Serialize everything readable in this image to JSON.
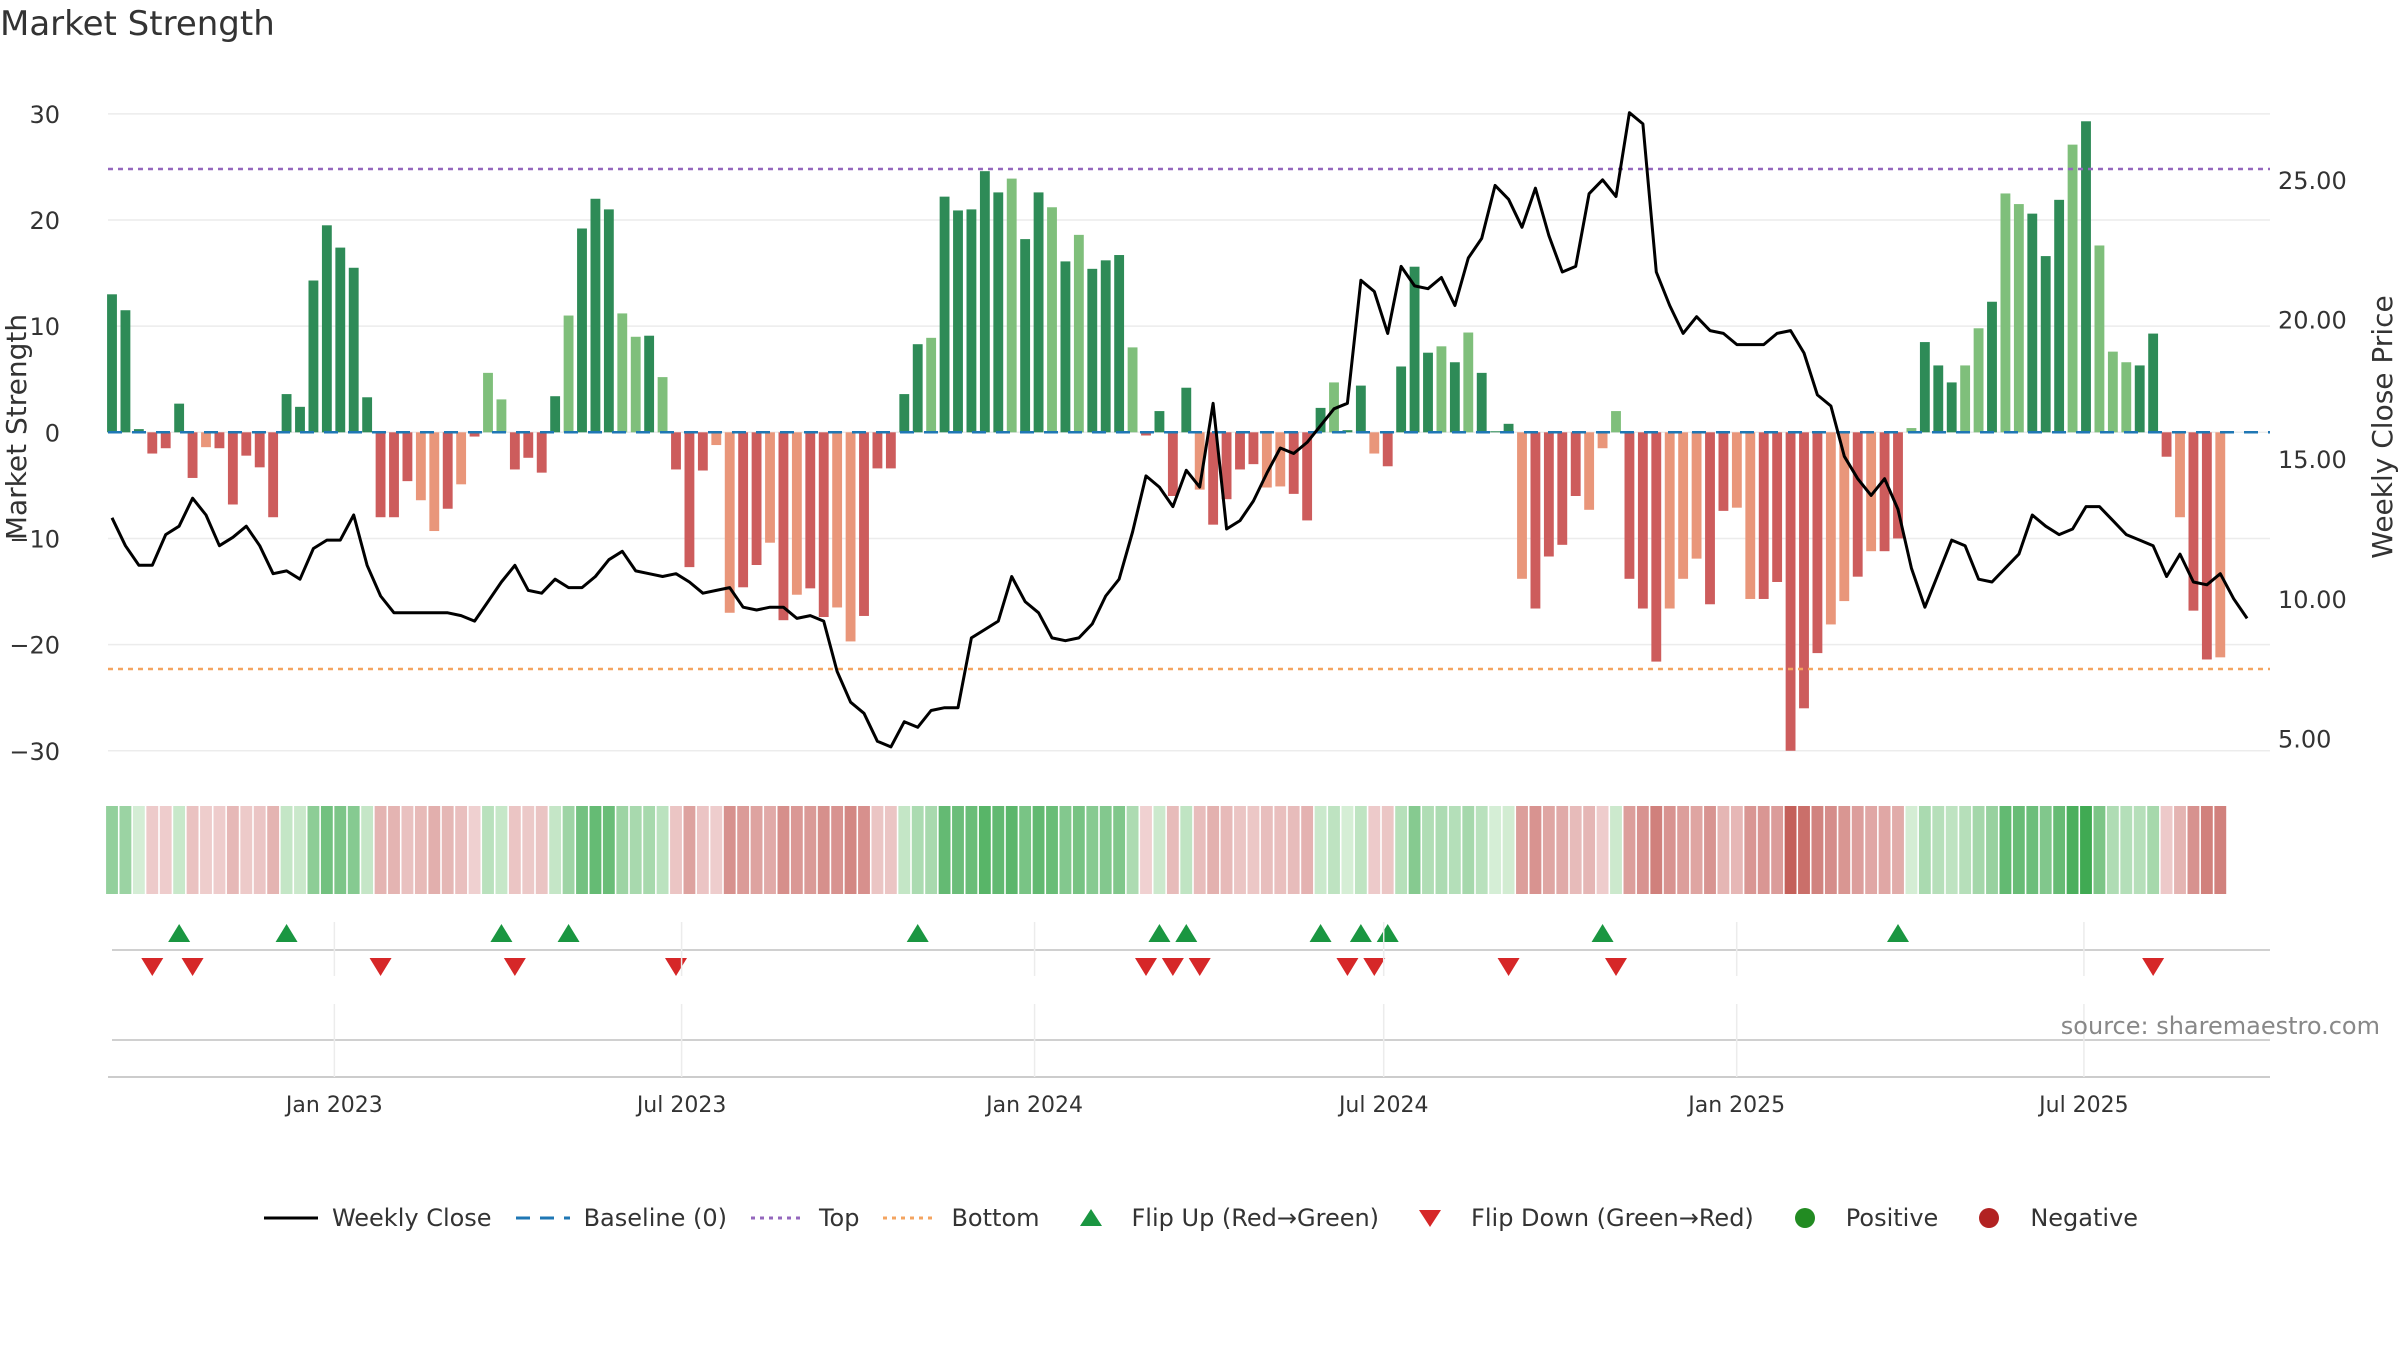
{
  "page": {
    "title": "Market Strength",
    "source": "source: sharemaestro.com"
  },
  "legend": [
    {
      "id": "close",
      "label": "Weekly Close",
      "symbol": "line",
      "color": "#000000"
    },
    {
      "id": "baseline",
      "label": "Baseline (0)",
      "symbol": "dash",
      "color": "#1f77b4"
    },
    {
      "id": "top",
      "label": "Top",
      "symbol": "dot",
      "color": "#9467bd"
    },
    {
      "id": "bottom",
      "label": "Bottom",
      "symbol": "dot",
      "color": "#f4a460"
    },
    {
      "id": "flipup",
      "label": "Flip Up (Red→Green)",
      "symbol": "tri-up",
      "color": "#1a9641"
    },
    {
      "id": "flipdown",
      "label": "Flip Down (Green→Red)",
      "symbol": "tri-down",
      "color": "#d62728"
    },
    {
      "id": "positive",
      "label": "Positive",
      "symbol": "circle",
      "color": "#228b22"
    },
    {
      "id": "negative",
      "label": "Negative",
      "symbol": "circle",
      "color": "#b22222"
    }
  ],
  "chart_data": {
    "type": "bar",
    "title": "Market Strength",
    "ylabel": "Market Strength",
    "y2label": "Weekly Close Price",
    "ylim": [
      -32,
      33
    ],
    "y2lim": [
      3.8,
      28.5
    ],
    "yticks": [
      30,
      20,
      10,
      0,
      -10,
      -20,
      -30
    ],
    "ytick_labels": [
      "30",
      "20",
      "10",
      "0",
      "−10",
      "−20",
      "−30"
    ],
    "y2ticks": [
      25,
      20,
      15,
      10,
      5
    ],
    "y2tick_labels": [
      "25.00",
      "20.00",
      "15.00",
      "10.00",
      "5.00"
    ],
    "x_start": "2022-09-05",
    "x_end": "2025-10-06",
    "xticks": [
      "2023-01-01",
      "2023-07-01",
      "2024-01-01",
      "2024-07-01",
      "2025-01-01",
      "2025-07-01"
    ],
    "xtick_labels": [
      "Jan 2023",
      "Jul 2023",
      "Jan 2024",
      "Jul 2024",
      "Jan 2025",
      "Jul 2025"
    ],
    "top_line": 24.8,
    "bottom_line": -22.3,
    "baseline": 0,
    "colors": {
      "pos_strong": "#2e8b57",
      "pos_light": "#7fbf7b",
      "neg_strong": "#cd5c5c",
      "neg_light": "#e9967a",
      "close": "#000000",
      "baseline": "#1f77b4",
      "top": "#9467bd",
      "bottom": "#f4a460",
      "flip_up": "#1a9641",
      "flip_down": "#d62728"
    },
    "series": [
      {
        "name": "Market Strength",
        "values": [
          13,
          11.5,
          0.3,
          -2,
          -1.5,
          2.7,
          -4.3,
          -1.4,
          -1.5,
          -6.8,
          -2.2,
          -3.3,
          -8,
          3.6,
          2.4,
          14.3,
          19.5,
          17.4,
          15.5,
          3.3,
          -8,
          -8,
          -4.6,
          -6.4,
          -9.3,
          -7.2,
          -4.9,
          -0.4,
          5.6,
          3.1,
          -3.5,
          -2.4,
          -3.8,
          3.4,
          11,
          19.2,
          22,
          21,
          11.2,
          9,
          9.1,
          5.2,
          -3.5,
          -12.7,
          -3.6,
          -1.2,
          -17,
          -14.6,
          -12.5,
          -10.4,
          -17.7,
          -15.3,
          -14.7,
          -17.4,
          -16.5,
          -19.7,
          -17.3,
          -3.4,
          -3.4,
          3.6,
          8.3,
          8.9,
          22.2,
          20.9,
          21,
          24.6,
          22.6,
          23.9,
          18.2,
          22.6,
          21.2,
          16.1,
          18.6,
          15.4,
          16.2,
          16.7,
          8,
          -0.3,
          2,
          -6,
          4.2,
          -5.4,
          -8.7,
          -6.3,
          -3.5,
          -3,
          -5.2,
          -5.1,
          -5.8,
          -8.3,
          2.3,
          4.7,
          0.2,
          4.4,
          -2,
          -3.2,
          6.2,
          15.6,
          7.5,
          8.1,
          6.6,
          9.4,
          5.6,
          0.1,
          0.8,
          -13.8,
          -16.6,
          -11.7,
          -10.6,
          -6,
          -7.3,
          -1.5,
          2,
          -13.8,
          -16.6,
          -21.6,
          -16.6,
          -13.8,
          -11.9,
          -16.2,
          -7.4,
          -7.1,
          -15.7,
          -15.7,
          -14.1,
          -30,
          -26,
          -20.8,
          -18.1,
          -15.9,
          -13.6,
          -11.2,
          -11.2,
          -10,
          0.4,
          8.5,
          6.3,
          4.7,
          6.3,
          9.8,
          12.3,
          22.5,
          21.5,
          20.6,
          16.6,
          21.9,
          27.1,
          29.3,
          17.6,
          7.6,
          6.6,
          6.3,
          9.3,
          -2.3,
          -8,
          -16.8,
          -21.4,
          -21.2
        ]
      },
      {
        "name": "Weekly Close",
        "values": [
          12.9,
          11.9,
          11.2,
          11.2,
          12.3,
          12.6,
          13.6,
          13,
          11.9,
          12.2,
          12.6,
          11.9,
          10.9,
          11,
          10.7,
          11.8,
          12.1,
          12.1,
          13,
          11.2,
          10.1,
          9.5,
          9.5,
          9.5,
          9.5,
          9.5,
          9.4,
          9.2,
          9.9,
          10.6,
          11.2,
          10.3,
          10.2,
          10.7,
          10.4,
          10.4,
          10.8,
          11.4,
          11.7,
          11,
          10.9,
          10.8,
          10.9,
          10.6,
          10.2,
          10.3,
          10.4,
          9.7,
          9.6,
          9.7,
          9.7,
          9.3,
          9.4,
          9.2,
          7.4,
          6.3,
          5.9,
          4.9,
          4.7,
          5.6,
          5.4,
          6,
          6.1,
          6.1,
          8.6,
          8.9,
          9.2,
          10.8,
          9.9,
          9.5,
          8.6,
          8.5,
          8.6,
          9.1,
          10.1,
          10.7,
          12.4,
          14.4,
          14,
          13.3,
          14.6,
          14,
          17,
          12.5,
          12.8,
          13.5,
          14.5,
          15.4,
          15.2,
          15.6,
          16.2,
          16.8,
          17,
          21.4,
          21,
          19.5,
          21.9,
          21.2,
          21.1,
          21.5,
          20.5,
          22.2,
          22.9,
          24.8,
          24.3,
          23.3,
          24.7,
          23,
          21.7,
          21.9,
          24.5,
          25,
          24.4,
          27.4,
          27,
          21.7,
          20.5,
          19.5,
          20.1,
          19.6,
          19.5,
          19.1,
          19.1,
          19.1,
          19.5,
          19.6,
          18.8,
          17.3,
          16.9,
          15.1,
          14.3,
          13.7,
          14.3,
          13.2,
          11.1,
          9.7,
          10.9,
          12.1,
          11.9,
          10.7,
          10.6,
          11.1,
          11.6,
          13,
          12.6,
          12.3,
          12.5,
          13.3,
          13.3,
          12.8,
          12.3,
          12.1,
          11.9,
          10.8,
          11.6,
          10.6,
          10.5,
          10.9,
          10,
          9.3
        ]
      }
    ],
    "flip_up_weeks": [
      5,
      13,
      29,
      34,
      60,
      78,
      80,
      90,
      93,
      95,
      111,
      133
    ],
    "flip_down_weeks": [
      3,
      6,
      20,
      30,
      42,
      77,
      79,
      81,
      92,
      94,
      104,
      112,
      152
    ]
  }
}
